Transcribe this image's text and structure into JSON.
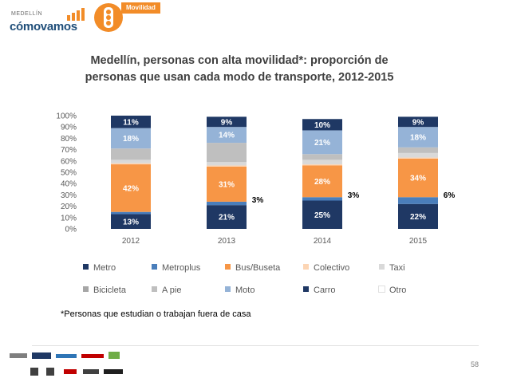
{
  "header": {
    "logo_small": "MEDELLÍN",
    "logo_big": "cómovamos",
    "section_label": "Movilidad"
  },
  "chart_data": {
    "type": "bar",
    "stacked": true,
    "title_line1": "Medellín, personas con alta movilidad*: proporción de",
    "title_line2": "personas que usan cada modo de transporte, 2012-2015",
    "categories": [
      "2012",
      "2013",
      "2014",
      "2015"
    ],
    "ylim": [
      0,
      100
    ],
    "yticks": [
      "0%",
      "10%",
      "20%",
      "30%",
      "40%",
      "50%",
      "60%",
      "70%",
      "80%",
      "90%",
      "100%"
    ],
    "legend_position": "bottom",
    "series": [
      {
        "name": "Carro",
        "color": "#1f3864",
        "values": [
          13,
          21,
          25,
          22
        ],
        "labels": [
          "13%",
          "21%",
          "25%",
          "22%"
        ],
        "label_color": "#ffffff"
      },
      {
        "name": "Metroplus",
        "color": "#4a7ebb",
        "values": [
          2,
          3,
          3,
          6
        ],
        "labels": [
          "",
          "3%",
          "3%",
          "6%"
        ],
        "label_color": "#000000",
        "label_outside": true
      },
      {
        "name": "Bus/Buseta",
        "color": "#f79646",
        "values": [
          42,
          31,
          28,
          34
        ],
        "labels": [
          "42%",
          "31%",
          "28%",
          "34%"
        ],
        "label_color": "#ffffff"
      },
      {
        "name": "Colectivo",
        "color": "#fcd5b4",
        "values": [
          1,
          1,
          1,
          1
        ],
        "labels": [
          "",
          "",
          "",
          ""
        ],
        "label_color": "#000000"
      },
      {
        "name": "Taxi",
        "color": "#d9d9d9",
        "values": [
          3,
          3,
          4,
          4
        ],
        "labels": [
          "",
          "",
          "",
          ""
        ],
        "label_color": "#000000"
      },
      {
        "name": "A pie",
        "color": "#bfbfbf",
        "values": [
          10,
          17,
          5,
          5
        ],
        "labels": [
          "",
          "",
          "",
          ""
        ],
        "label_color": "#000000"
      },
      {
        "name": "Moto",
        "color": "#95b3d7",
        "values": [
          18,
          14,
          21,
          18
        ],
        "labels": [
          "18%",
          "14%",
          "21%",
          "18%"
        ],
        "label_color": "#ffffff"
      },
      {
        "name": "Metro",
        "color": "#1f3864",
        "values": [
          11,
          9,
          10,
          9
        ],
        "labels": [
          "11%",
          "9%",
          "10%",
          "9%"
        ],
        "label_color": "#ffffff"
      }
    ],
    "legend": [
      {
        "name": "Metro",
        "color": "#1f3864"
      },
      {
        "name": "Metroplus",
        "color": "#4a7ebb"
      },
      {
        "name": "Bus/Buseta",
        "color": "#f79646"
      },
      {
        "name": "Colectivo",
        "color": "#fcd5b4"
      },
      {
        "name": "Taxi",
        "color": "#d9d9d9"
      },
      {
        "name": "Bicicleta",
        "color": "#a6a6a6"
      },
      {
        "name": "A pie",
        "color": "#bfbfbf"
      },
      {
        "name": "Moto",
        "color": "#95b3d7"
      },
      {
        "name": "Carro",
        "color": "#1f3864"
      },
      {
        "name": "Otro",
        "color": "#ffffff"
      }
    ]
  },
  "footnote": "*Personas que estudian o trabajan fuera de casa",
  "page_number": "58"
}
